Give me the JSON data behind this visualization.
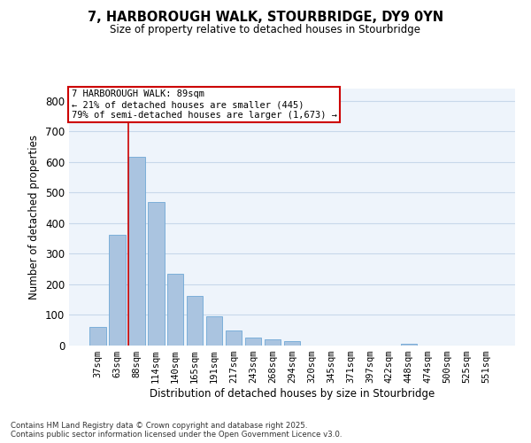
{
  "title_line1": "7, HARBOROUGH WALK, STOURBRIDGE, DY9 0YN",
  "title_line2": "Size of property relative to detached houses in Stourbridge",
  "xlabel": "Distribution of detached houses by size in Stourbridge",
  "ylabel": "Number of detached properties",
  "categories": [
    "37sqm",
    "63sqm",
    "88sqm",
    "114sqm",
    "140sqm",
    "165sqm",
    "191sqm",
    "217sqm",
    "243sqm",
    "268sqm",
    "294sqm",
    "320sqm",
    "345sqm",
    "371sqm",
    "397sqm",
    "422sqm",
    "448sqm",
    "474sqm",
    "500sqm",
    "525sqm",
    "551sqm"
  ],
  "values": [
    60,
    363,
    617,
    470,
    235,
    162,
    97,
    50,
    25,
    20,
    15,
    0,
    0,
    0,
    0,
    0,
    5,
    0,
    0,
    0,
    0
  ],
  "bar_color": "#aac4e0",
  "bar_edge_color": "#6fa8d6",
  "highlight_bar_index": 2,
  "highlight_line_color": "#cc0000",
  "annotation_text": "7 HARBOROUGH WALK: 89sqm\n← 21% of detached houses are smaller (445)\n79% of semi-detached houses are larger (1,673) →",
  "annotation_box_color": "#cc0000",
  "ylim": [
    0,
    840
  ],
  "yticks": [
    0,
    100,
    200,
    300,
    400,
    500,
    600,
    700,
    800
  ],
  "background_color": "#eef4fb",
  "grid_color": "#c8d8ea",
  "footer_line1": "Contains HM Land Registry data © Crown copyright and database right 2025.",
  "footer_line2": "Contains public sector information licensed under the Open Government Licence v3.0."
}
